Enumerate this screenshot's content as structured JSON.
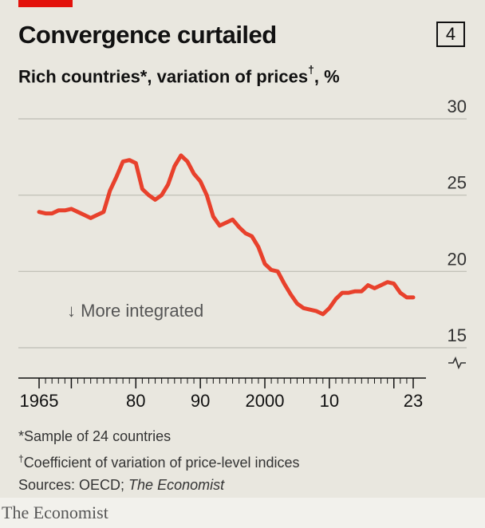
{
  "header": {
    "title": "Convergence curtailed",
    "badge": "4",
    "subtitle_main": "Rich countries*, variation of prices",
    "subtitle_mark": "†",
    "subtitle_unit": ", %"
  },
  "notes": {
    "line1": "*Sample of 24 countries",
    "line2_mark": "†",
    "line2": "Coefficient of variation of price-level indices",
    "line3_prefix": "Sources: OECD; ",
    "line3_italic": "The Economist"
  },
  "footer": {
    "brand": "The Economist"
  },
  "colors": {
    "line": "#e8412c",
    "accent": "#e3120b",
    "grid": "#bdbcb3"
  },
  "chart_data": {
    "type": "line",
    "annotation": "↓ More integrated",
    "ylim": [
      15,
      30
    ],
    "yticks": [
      15,
      20,
      25,
      30
    ],
    "xlim": [
      1965,
      2023
    ],
    "xtick_labels": [
      {
        "value": 1965,
        "label": "1965"
      },
      {
        "value": 1980,
        "label": "80"
      },
      {
        "value": 1990,
        "label": "90"
      },
      {
        "value": 2000,
        "label": "2000"
      },
      {
        "value": 2010,
        "label": "10"
      },
      {
        "value": 2023,
        "label": "23"
      }
    ],
    "axis_break": true,
    "grid": true,
    "series": [
      {
        "x": [
          1965,
          1966,
          1967,
          1968,
          1969,
          1970,
          1971,
          1972,
          1973,
          1974,
          1975,
          1976,
          1977,
          1978,
          1979,
          1980,
          1981,
          1982,
          1983,
          1984,
          1985,
          1986,
          1987,
          1988,
          1989,
          1990,
          1991,
          1992,
          1993,
          1994,
          1995,
          1996,
          1997,
          1998,
          1999,
          2000,
          2001,
          2002,
          2003,
          2004,
          2005,
          2006,
          2007,
          2008,
          2009,
          2010,
          2011,
          2012,
          2013,
          2014,
          2015,
          2016,
          2017,
          2018,
          2019,
          2020,
          2021,
          2022,
          2023
        ],
        "y": [
          23.9,
          23.8,
          23.8,
          24.0,
          24.0,
          24.1,
          23.9,
          23.7,
          23.5,
          23.7,
          23.9,
          25.3,
          26.2,
          27.2,
          27.3,
          27.1,
          25.4,
          25.0,
          24.7,
          25.0,
          25.7,
          26.9,
          27.6,
          27.2,
          26.4,
          25.9,
          25.0,
          23.6,
          23.0,
          23.2,
          23.4,
          22.9,
          22.5,
          22.3,
          21.6,
          20.5,
          20.1,
          20.0,
          19.2,
          18.5,
          17.9,
          17.6,
          17.5,
          17.4,
          17.2,
          17.6,
          18.2,
          18.6,
          18.6,
          18.7,
          18.7,
          19.1,
          18.9,
          19.1,
          19.3,
          19.2,
          18.6,
          18.3,
          18.3
        ]
      }
    ]
  }
}
